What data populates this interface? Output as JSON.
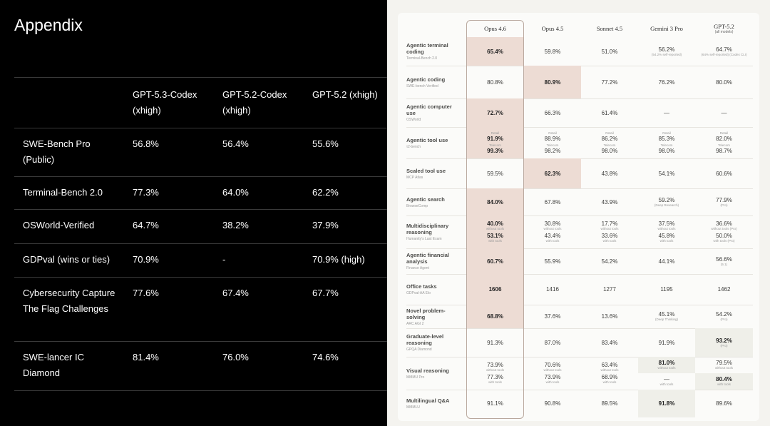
{
  "left": {
    "title": "Appendix",
    "columns": [
      "",
      "GPT-5.3-Codex (xhigh)",
      "GPT-5.2-Codex (xhigh)",
      "GPT-5.2 (xhigh)"
    ],
    "rows": [
      {
        "label": "SWE-Bench Pro (Public)",
        "values": [
          "56.8%",
          "56.4%",
          "55.6%"
        ]
      },
      {
        "label": "Terminal-Bench 2.0",
        "values": [
          "77.3%",
          "64.0%",
          "62.2%"
        ]
      },
      {
        "label": "OSWorld-Verified",
        "values": [
          "64.7%",
          "38.2%",
          "37.9%"
        ]
      },
      {
        "label": "GDPval (wins or ties)",
        "values": [
          "70.9%",
          "-",
          "70.9% (high)"
        ]
      },
      {
        "label": "Cybersecurity Capture The Flag Challenges",
        "values": [
          "77.6%",
          "67.4%",
          "67.7%"
        ]
      },
      {
        "label": "SWE-lancer IC Diamond",
        "values": [
          "81.4%",
          "76.0%",
          "74.6%"
        ]
      }
    ]
  },
  "right": {
    "colors": {
      "highlight_primary": "#eddcd4",
      "highlight_secondary": "#efefe9",
      "outline": "#b9a89e"
    },
    "highlight_column": "Opus 4.6",
    "columns": [
      {
        "name": "Opus 4.6"
      },
      {
        "name": "Opus 4.5"
      },
      {
        "name": "Sonnet 4.5"
      },
      {
        "name": "Gemini 3 Pro"
      },
      {
        "name": "GPT-5.2",
        "sub": "(all models)"
      }
    ],
    "rows": [
      {
        "category": "Agentic terminal coding",
        "benchmark": "Terminal-Bench 2.0",
        "cells": [
          {
            "hl": "pink",
            "items": [
              {
                "v": "65.4%"
              }
            ]
          },
          {
            "items": [
              {
                "v": "59.8%"
              }
            ]
          },
          {
            "items": [
              {
                "v": "51.0%"
              }
            ]
          },
          {
            "items": [
              {
                "v": "56.2%",
                "post": "(54.2% self-reported)"
              }
            ]
          },
          {
            "items": [
              {
                "v": "64.7%",
                "post": "(64% self-reported) (Codex CLI)"
              }
            ]
          }
        ]
      },
      {
        "category": "Agentic coding",
        "benchmark": "SWE-bench Verified",
        "cells": [
          {
            "items": [
              {
                "v": "80.8%"
              }
            ]
          },
          {
            "hl": "pink",
            "items": [
              {
                "v": "80.9%"
              }
            ]
          },
          {
            "items": [
              {
                "v": "77.2%"
              }
            ]
          },
          {
            "items": [
              {
                "v": "76.2%"
              }
            ]
          },
          {
            "items": [
              {
                "v": "80.0%"
              }
            ]
          }
        ]
      },
      {
        "category": "Agentic computer use",
        "benchmark": "OSWorld",
        "cells": [
          {
            "hl": "pink",
            "items": [
              {
                "v": "72.7%"
              }
            ]
          },
          {
            "items": [
              {
                "v": "66.3%"
              }
            ]
          },
          {
            "items": [
              {
                "v": "61.4%"
              }
            ]
          },
          {
            "items": [
              {
                "v": "—"
              }
            ]
          },
          {
            "items": [
              {
                "v": "—"
              }
            ]
          }
        ]
      },
      {
        "category": "Agentic tool use",
        "benchmark": "τ2-bench",
        "cells": [
          {
            "hl": "pink",
            "items": [
              {
                "pre": "Retail",
                "v": "91.9%"
              },
              {
                "pre": "Telecom",
                "v": "99.3%"
              }
            ]
          },
          {
            "items": [
              {
                "pre": "Retail",
                "v": "88.9%"
              },
              {
                "pre": "Telecom",
                "v": "98.2%"
              }
            ]
          },
          {
            "items": [
              {
                "pre": "Retail",
                "v": "86.2%"
              },
              {
                "pre": "Telecom",
                "v": "98.0%"
              }
            ]
          },
          {
            "items": [
              {
                "pre": "Retail",
                "v": "85.3%"
              },
              {
                "pre": "Telecom",
                "v": "98.0%"
              }
            ]
          },
          {
            "items": [
              {
                "pre": "Retail",
                "v": "82.0%"
              },
              {
                "pre": "Telecom",
                "v": "98.7%"
              }
            ]
          }
        ]
      },
      {
        "category": "Scaled tool use",
        "benchmark": "MCP Atlas",
        "cells": [
          {
            "items": [
              {
                "v": "59.5%"
              }
            ]
          },
          {
            "hl": "pink",
            "items": [
              {
                "v": "62.3%"
              }
            ]
          },
          {
            "items": [
              {
                "v": "43.8%"
              }
            ]
          },
          {
            "items": [
              {
                "v": "54.1%"
              }
            ]
          },
          {
            "items": [
              {
                "v": "60.6%"
              }
            ]
          }
        ]
      },
      {
        "category": "Agentic search",
        "benchmark": "BrowseComp",
        "cells": [
          {
            "hl": "pink",
            "items": [
              {
                "v": "84.0%"
              }
            ]
          },
          {
            "items": [
              {
                "v": "67.8%"
              }
            ]
          },
          {
            "items": [
              {
                "v": "43.9%"
              }
            ]
          },
          {
            "items": [
              {
                "v": "59.2%",
                "post": "(Deep Research)"
              }
            ]
          },
          {
            "items": [
              {
                "v": "77.9%",
                "post": "(Pro)"
              }
            ]
          }
        ]
      },
      {
        "category": "Multidisciplinary reasoning",
        "benchmark": "Humanity's Last Exam",
        "cells": [
          {
            "hl": "pink",
            "items": [
              {
                "v": "40.0%",
                "post": "without tools"
              },
              {
                "v": "53.1%",
                "post": "with tools"
              }
            ]
          },
          {
            "items": [
              {
                "v": "30.8%",
                "post": "without tools"
              },
              {
                "v": "43.4%",
                "post": "with tools"
              }
            ]
          },
          {
            "items": [
              {
                "v": "17.7%",
                "post": "without tools"
              },
              {
                "v": "33.6%",
                "post": "with tools"
              }
            ]
          },
          {
            "items": [
              {
                "v": "37.5%",
                "post": "without tools"
              },
              {
                "v": "45.8%",
                "post": "with tools"
              }
            ]
          },
          {
            "items": [
              {
                "v": "36.6%",
                "post": "without tools (Pro)"
              },
              {
                "v": "50.0%",
                "post": "with tools (Pro)"
              }
            ]
          }
        ]
      },
      {
        "category": "Agentic financial analysis",
        "benchmark": "Finance Agent",
        "cells": [
          {
            "hl": "pink",
            "items": [
              {
                "v": "60.7%"
              }
            ]
          },
          {
            "items": [
              {
                "v": "55.9%"
              }
            ]
          },
          {
            "items": [
              {
                "v": "54.2%"
              }
            ]
          },
          {
            "items": [
              {
                "v": "44.1%"
              }
            ]
          },
          {
            "items": [
              {
                "v": "56.6%",
                "post": "(5.1)"
              }
            ]
          }
        ]
      },
      {
        "category": "Office tasks",
        "benchmark": "GDPval-AA Elo",
        "cells": [
          {
            "hl": "pink",
            "items": [
              {
                "v": "1606"
              }
            ]
          },
          {
            "items": [
              {
                "v": "1416"
              }
            ]
          },
          {
            "items": [
              {
                "v": "1277"
              }
            ]
          },
          {
            "items": [
              {
                "v": "1195"
              }
            ]
          },
          {
            "items": [
              {
                "v": "1462"
              }
            ]
          }
        ]
      },
      {
        "category": "Novel problem-solving",
        "benchmark": "ARC AGI 2",
        "cells": [
          {
            "hl": "pink",
            "items": [
              {
                "v": "68.8%"
              }
            ]
          },
          {
            "items": [
              {
                "v": "37.6%"
              }
            ]
          },
          {
            "items": [
              {
                "v": "13.6%"
              }
            ]
          },
          {
            "items": [
              {
                "v": "45.1%",
                "post": "(Deep Thinking)"
              }
            ]
          },
          {
            "items": [
              {
                "v": "54.2%",
                "post": "(Pro)"
              }
            ]
          }
        ]
      },
      {
        "category": "Graduate-level reasoning",
        "benchmark": "GPQA Diamond",
        "cells": [
          {
            "items": [
              {
                "v": "91.3%"
              }
            ]
          },
          {
            "items": [
              {
                "v": "87.0%"
              }
            ]
          },
          {
            "items": [
              {
                "v": "83.4%"
              }
            ]
          },
          {
            "items": [
              {
                "v": "91.9%"
              }
            ]
          },
          {
            "hl": "gray",
            "items": [
              {
                "v": "93.2%",
                "post": "(Pro)"
              }
            ]
          }
        ]
      },
      {
        "category": "Visual reasoning",
        "benchmark": "MMMU Pro",
        "cells": [
          {
            "items": [
              {
                "v": "73.9%",
                "post": "without tools"
              },
              {
                "v": "77.3%",
                "post": "with tools"
              }
            ]
          },
          {
            "items": [
              {
                "v": "70.6%",
                "post": "without tools"
              },
              {
                "v": "73.9%",
                "post": "with tools"
              }
            ]
          },
          {
            "items": [
              {
                "v": "63.4%",
                "post": "without tools"
              },
              {
                "v": "68.9%",
                "post": "with tools"
              }
            ]
          },
          {
            "items": [
              {
                "v": "81.0%",
                "post": "without tools",
                "hl": "gray"
              },
              {
                "v": "—",
                "post": "with tools"
              }
            ]
          },
          {
            "items": [
              {
                "v": "79.5%",
                "post": "without tools"
              },
              {
                "v": "80.4%",
                "post": "with tools",
                "hl": "gray"
              }
            ]
          }
        ]
      },
      {
        "category": "Multilingual Q&A",
        "benchmark": "MMMLU",
        "cells": [
          {
            "items": [
              {
                "v": "91.1%"
              }
            ]
          },
          {
            "items": [
              {
                "v": "90.8%"
              }
            ]
          },
          {
            "items": [
              {
                "v": "89.5%"
              }
            ]
          },
          {
            "hl": "gray",
            "items": [
              {
                "v": "91.8%"
              }
            ]
          },
          {
            "items": [
              {
                "v": "89.6%"
              }
            ]
          }
        ]
      }
    ]
  }
}
